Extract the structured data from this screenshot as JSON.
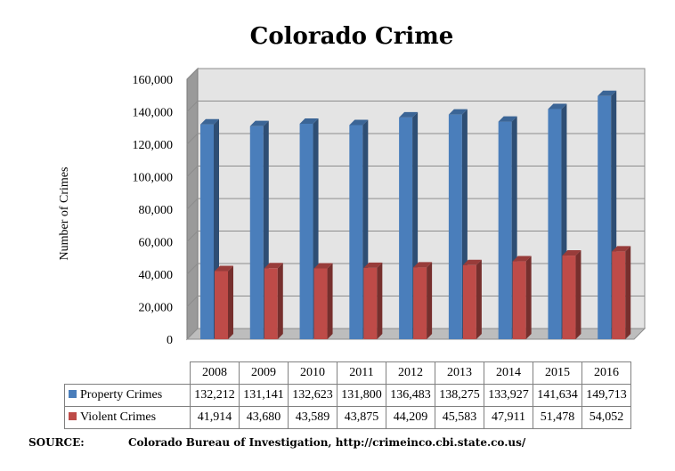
{
  "chart_data": {
    "type": "bar",
    "title": "Colorado Crime",
    "xlabel": "",
    "ylabel": "Number of Crimes",
    "ylim": [
      0,
      160000
    ],
    "y_ticks": [
      "0",
      "20,000",
      "40,000",
      "60,000",
      "80,000",
      "100,000",
      "120,000",
      "140,000",
      "160,000"
    ],
    "y_tick_values": [
      0,
      20000,
      40000,
      60000,
      80000,
      100000,
      120000,
      140000,
      160000
    ],
    "grid": true,
    "legend": "data table below chart",
    "categories": [
      "2008",
      "2009",
      "2010",
      "2011",
      "2012",
      "2013",
      "2014",
      "2015",
      "2016"
    ],
    "series": [
      {
        "name": "Property Crimes",
        "color": "#4a7ebb",
        "values": [
          132212,
          131141,
          132623,
          131800,
          136483,
          138275,
          133927,
          141634,
          149713
        ],
        "labels": [
          "132,212",
          "131,141",
          "132,623",
          "131,800",
          "136,483",
          "138,275",
          "133,927",
          "141,634",
          "149,713"
        ]
      },
      {
        "name": "Violent Crimes",
        "color": "#be4b48",
        "values": [
          41914,
          43680,
          43589,
          43875,
          44209,
          45583,
          47911,
          51478,
          54052
        ],
        "labels": [
          "41,914",
          "43,680",
          "43,589",
          "43,875",
          "44,209",
          "45,583",
          "47,911",
          "51,478",
          "54,052"
        ]
      }
    ]
  },
  "source": {
    "label": "SOURCE:",
    "text": "Colorado Bureau of Investigation, http://crimeinco.cbi.state.co.us/"
  }
}
